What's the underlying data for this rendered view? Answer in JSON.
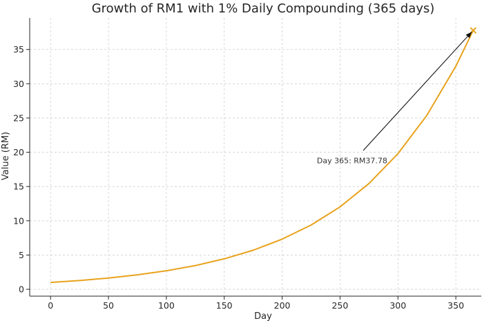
{
  "chart_data": {
    "type": "line",
    "title": "Growth of RM1 with 1% Daily Compounding (365 days)",
    "xlabel": "Day",
    "ylabel": "Value (RM)",
    "xlim": [
      -18,
      372
    ],
    "ylim": [
      -1,
      39.6
    ],
    "xticks": [
      "0",
      "50",
      "100",
      "150",
      "200",
      "250",
      "300",
      "350"
    ],
    "yticks": [
      "0",
      "5",
      "10",
      "15",
      "20",
      "25",
      "30",
      "35"
    ],
    "grid": true,
    "series": [
      {
        "color": "#e8a21b",
        "x": [
          0,
          25,
          50,
          75,
          100,
          125,
          150,
          175,
          200,
          225,
          250,
          275,
          300,
          325,
          350,
          365
        ],
        "y": [
          1.0,
          1.28,
          1.64,
          2.11,
          2.7,
          3.46,
          4.45,
          5.7,
          7.32,
          9.38,
          12.03,
          15.44,
          19.79,
          25.39,
          32.56,
          37.78
        ]
      }
    ],
    "marker": {
      "x": 365,
      "y": 37.78,
      "symbol": "x",
      "color": "#e8a21b"
    },
    "annotation": {
      "text": "Day 365: RM37.78",
      "x": 230,
      "y": 18.8,
      "arrow_to": [
        365,
        37.78
      ]
    }
  }
}
